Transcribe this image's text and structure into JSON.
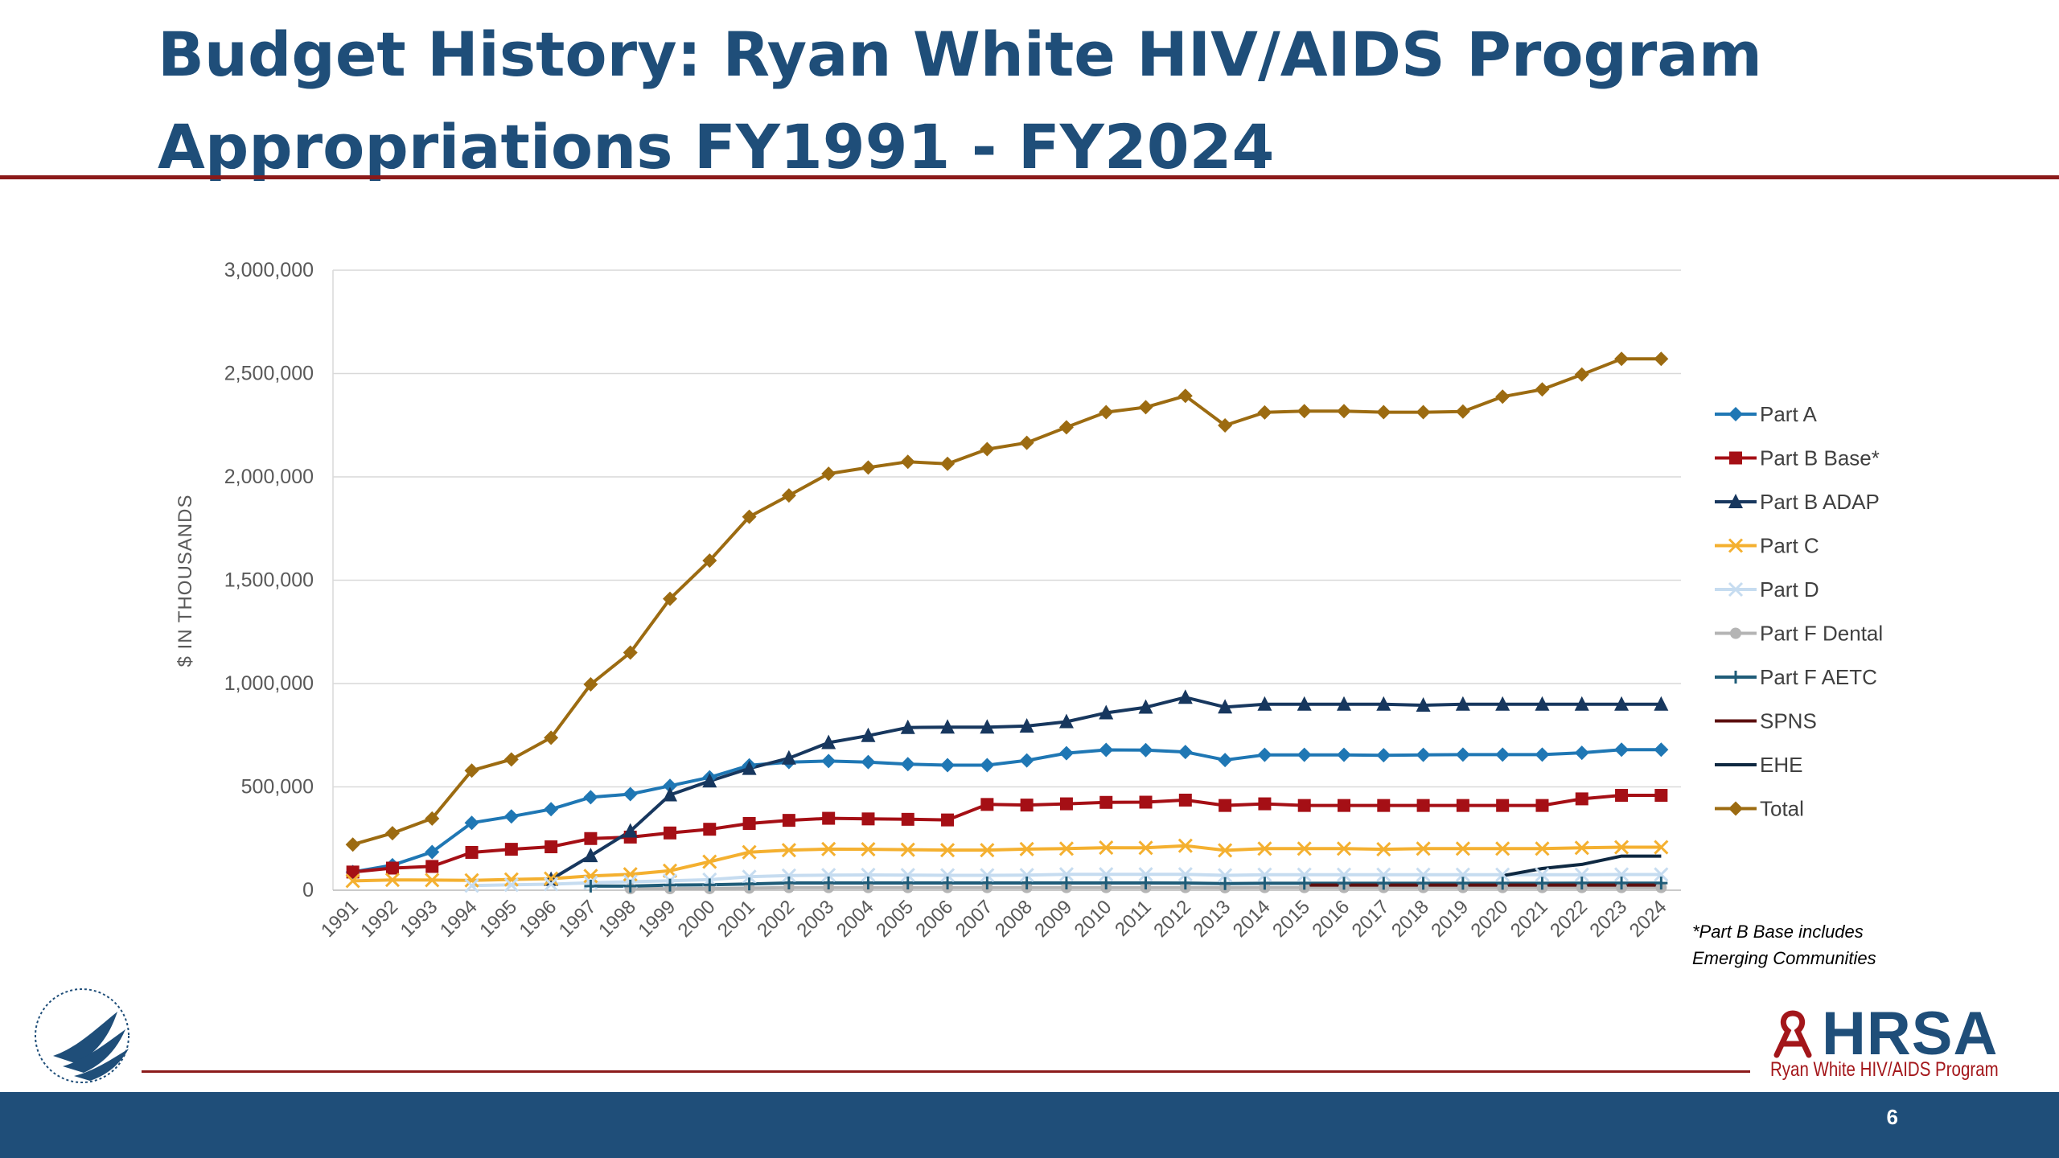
{
  "slide": {
    "title_line1": "Budget History: Ryan White HIV/AIDS Program",
    "title_line2": "Appropriations FY1991 - FY2024",
    "footnote_line1": "*Part B Base includes",
    "footnote_line2": "Emerging Communities",
    "page_number": "6",
    "logo_text": "HRSA",
    "logo_subtext": "Ryan White HIV/AIDS Program",
    "colors": {
      "title": "#1F4E79",
      "rule": "#8B1A1A",
      "footer": "#1F4E79"
    }
  },
  "chart_data": {
    "type": "line",
    "title": "",
    "xlabel": "",
    "ylabel": "$ IN THOUSANDS",
    "ylim": [
      0,
      3000000
    ],
    "yticks": [
      0,
      500000,
      1000000,
      1500000,
      2000000,
      2500000,
      3000000
    ],
    "ytick_labels": [
      "0",
      "500,000",
      "1,000,000",
      "1,500,000",
      "2,000,000",
      "2,500,000",
      "3,000,000"
    ],
    "legend_position": "right",
    "grid": "horizontal",
    "categories": [
      "1991",
      "1992",
      "1993",
      "1994",
      "1995",
      "1996",
      "1997",
      "1998",
      "1999",
      "2000",
      "2001",
      "2002",
      "2003",
      "2004",
      "2005",
      "2006",
      "2007",
      "2008",
      "2009",
      "2010",
      "2011",
      "2012",
      "2013",
      "2014",
      "2015",
      "2016",
      "2017",
      "2018",
      "2019",
      "2020",
      "2021",
      "2022",
      "2023",
      "2024"
    ],
    "series": [
      {
        "name": "Part A",
        "color": "#1F77B4",
        "marker": "diamond",
        "values": [
          88000,
          121000,
          185000,
          326000,
          357000,
          392000,
          450000,
          465000,
          505000,
          546000,
          604000,
          620000,
          625000,
          620000,
          610000,
          605000,
          605000,
          628000,
          663000,
          679000,
          678000,
          669000,
          630000,
          655000,
          655000,
          655000,
          653000,
          655000,
          656000,
          656000,
          656000,
          665000,
          680000,
          680000
        ]
      },
      {
        "name": "Part B Base*",
        "color": "#A50F15",
        "marker": "square",
        "values": [
          88000,
          107000,
          115000,
          183000,
          198000,
          210000,
          250000,
          257000,
          277000,
          295000,
          323000,
          338000,
          348000,
          345000,
          343000,
          340000,
          415000,
          412000,
          418000,
          425000,
          426000,
          436000,
          410000,
          418000,
          410000,
          410000,
          410000,
          410000,
          410000,
          410000,
          410000,
          442000,
          459000,
          459000
        ]
      },
      {
        "name": "Part B ADAP",
        "color": "#17375E",
        "marker": "triangle",
        "values": [
          null,
          null,
          null,
          null,
          null,
          52000,
          167000,
          286000,
          461000,
          528000,
          589000,
          639000,
          714000,
          748000,
          787000,
          789000,
          789000,
          794000,
          815000,
          858000,
          885000,
          933000,
          886000,
          900000,
          900000,
          900000,
          900000,
          895000,
          900000,
          900000,
          900000,
          900000,
          900000,
          900000
        ]
      },
      {
        "name": "Part C",
        "color": "#F4B030",
        "marker": "x",
        "values": [
          45000,
          50000,
          49000,
          48000,
          52000,
          56000,
          69000,
          77000,
          94000,
          138000,
          184000,
          194000,
          199000,
          198000,
          196000,
          194000,
          194000,
          199000,
          201000,
          206000,
          205000,
          215000,
          193000,
          201000,
          201000,
          201000,
          198000,
          201000,
          201000,
          201000,
          201000,
          205000,
          208000,
          208000
        ]
      },
      {
        "name": "Part D",
        "color": "#C6DCF0",
        "marker": "x",
        "values": [
          null,
          null,
          null,
          22000,
          26000,
          29000,
          36000,
          41000,
          46000,
          51000,
          65000,
          71000,
          73000,
          74000,
          73000,
          72000,
          72000,
          73000,
          77000,
          77000,
          77000,
          77000,
          72000,
          75000,
          75000,
          75000,
          75000,
          75000,
          75000,
          75000,
          75000,
          75000,
          76000,
          76000
        ]
      },
      {
        "name": "Part F Dental",
        "color": "#B4B4B4",
        "marker": "circle",
        "values": [
          null,
          null,
          null,
          null,
          null,
          null,
          null,
          7500,
          7800,
          8000,
          10000,
          13000,
          13000,
          13000,
          13000,
          13000,
          13000,
          13000,
          13000,
          13000,
          13000,
          13000,
          12000,
          13000,
          13000,
          13000,
          13000,
          13000,
          13000,
          13000,
          13000,
          13000,
          13000,
          13000
        ]
      },
      {
        "name": "Part F AETC",
        "color": "#1F5C78",
        "marker": "plus",
        "values": [
          null,
          null,
          null,
          null,
          null,
          null,
          20000,
          20000,
          25000,
          26000,
          30000,
          35000,
          35000,
          35000,
          35000,
          35000,
          35000,
          35000,
          35000,
          35000,
          35000,
          34500,
          32000,
          33600,
          33600,
          33600,
          33600,
          33600,
          33600,
          33600,
          33600,
          34300,
          34300,
          34300
        ]
      },
      {
        "name": "SPNS",
        "color": "#5C0F0F",
        "marker": "none",
        "values": [
          null,
          null,
          null,
          null,
          null,
          null,
          null,
          null,
          null,
          null,
          null,
          null,
          null,
          null,
          null,
          null,
          null,
          null,
          null,
          null,
          null,
          null,
          null,
          null,
          25000,
          25000,
          25000,
          25000,
          25000,
          25000,
          25000,
          25000,
          25000,
          25000
        ]
      },
      {
        "name": "EHE",
        "color": "#0E2841",
        "marker": "none",
        "values": [
          null,
          null,
          null,
          null,
          null,
          null,
          null,
          null,
          null,
          null,
          null,
          null,
          null,
          null,
          null,
          null,
          null,
          null,
          null,
          null,
          null,
          null,
          null,
          null,
          null,
          null,
          null,
          null,
          null,
          70000,
          105000,
          125000,
          165000,
          165000
        ]
      },
      {
        "name": "Total",
        "color": "#9C6B11",
        "marker": "diamond",
        "values": [
          221000,
          276000,
          347000,
          579000,
          633000,
          738000,
          996000,
          1150000,
          1410000,
          1595000,
          1807000,
          1910000,
          2015000,
          2045000,
          2073000,
          2063000,
          2134000,
          2165000,
          2240000,
          2313000,
          2337000,
          2392000,
          2249000,
          2312000,
          2318000,
          2318000,
          2313000,
          2313000,
          2316000,
          2388000,
          2423000,
          2495000,
          2571000,
          2571000
        ]
      }
    ]
  }
}
